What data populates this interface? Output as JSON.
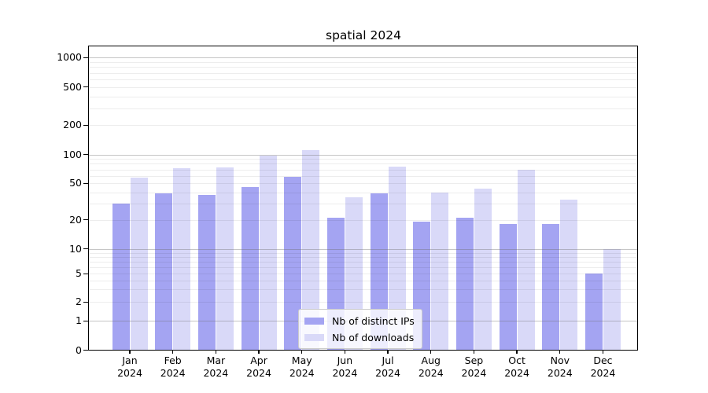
{
  "chart_data": {
    "type": "bar",
    "title": "spatial 2024",
    "categories": [
      "Jan 2024",
      "Feb 2024",
      "Mar 2024",
      "Apr 2024",
      "May 2024",
      "Jun 2024",
      "Jul 2024",
      "Aug 2024",
      "Sep 2024",
      "Oct 2024",
      "Nov 2024",
      "Dec 2024"
    ],
    "series": [
      {
        "name": "Nb of distinct IPs",
        "color": "#a4a4f2",
        "values": [
          30,
          39,
          37,
          46,
          58,
          21,
          39,
          19,
          21,
          18,
          18,
          5
        ]
      },
      {
        "name": "Nb of downloads",
        "color": "#d9d9f8",
        "values": [
          57,
          72,
          74,
          98,
          112,
          35,
          75,
          40,
          44,
          70,
          33,
          10
        ]
      }
    ],
    "yscale": "log-like with linear 0-1 segment",
    "yticks": [
      0,
      1,
      2,
      5,
      10,
      20,
      50,
      100,
      200,
      500,
      1000
    ],
    "ylim": [
      0,
      1300
    ],
    "xlabel": "",
    "ylabel": "",
    "grid": true,
    "legend_position": "lower center"
  },
  "colors": {
    "bar_distinct_ips": "#a4a4f2",
    "bar_downloads": "#d9d9f8",
    "axis": "#000000",
    "major_gridline": "#9a9a9a",
    "minor_gridline": "#e9e9e9",
    "legend_border": "#cccccc"
  }
}
